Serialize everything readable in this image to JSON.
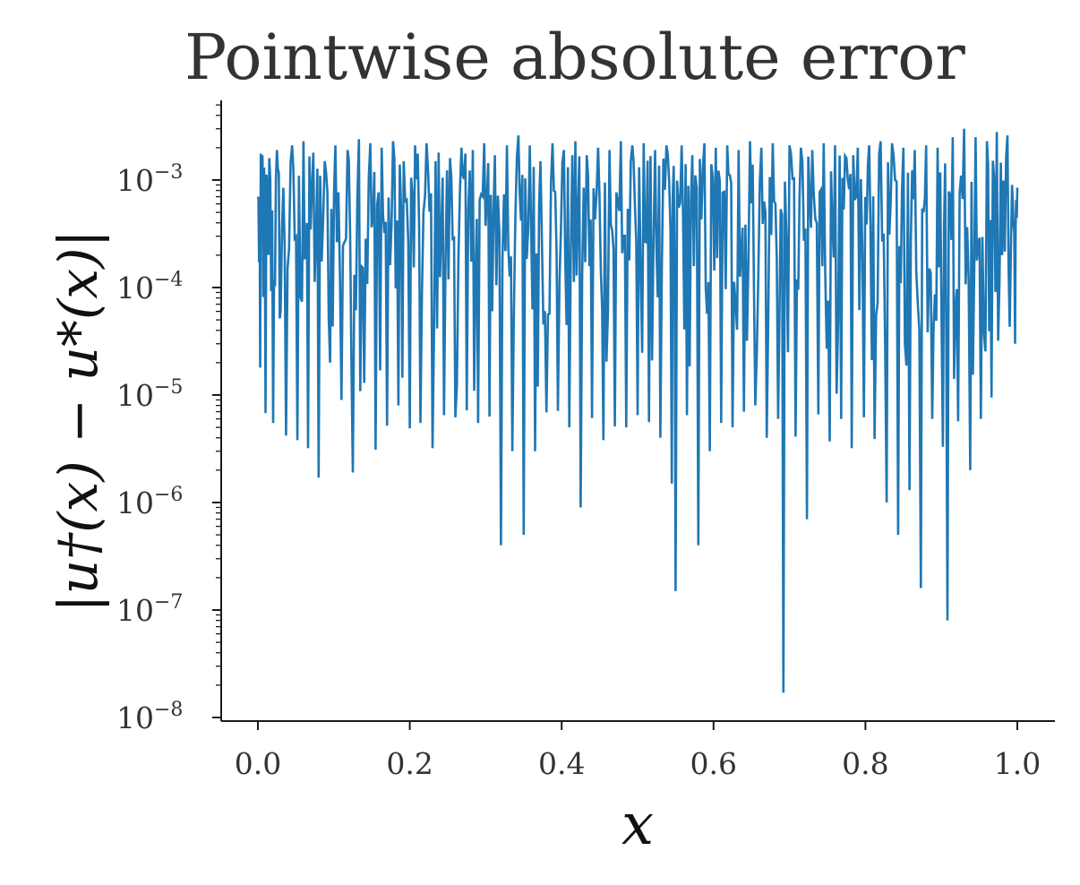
{
  "chart_data": {
    "type": "line",
    "title": "Pointwise absolute error",
    "xlabel": "x",
    "ylabel": "|u†(x) − u*(x)|",
    "xlim": [
      -0.05,
      1.05
    ],
    "ylim": [
      1e-08,
      0.005
    ],
    "yscale": "log",
    "grid": false,
    "x_ticks": [
      "0.0",
      "0.2",
      "0.4",
      "0.6",
      "0.8",
      "1.0"
    ],
    "y_ticks": [
      {
        "base": "10",
        "exp": "−3"
      },
      {
        "base": "10",
        "exp": "−4"
      },
      {
        "base": "10",
        "exp": "−5"
      },
      {
        "base": "10",
        "exp": "−6"
      },
      {
        "base": "10",
        "exp": "−7"
      },
      {
        "base": "10",
        "exp": "−8"
      }
    ],
    "series": [
      {
        "color": "#1f77b4",
        "x": [
          0.0,
          0.003,
          0.006,
          0.01,
          0.015,
          0.02,
          0.025,
          0.03,
          0.037,
          0.045,
          0.052,
          0.06,
          0.066,
          0.073,
          0.08,
          0.088,
          0.095,
          0.102,
          0.11,
          0.118,
          0.125,
          0.133,
          0.14,
          0.148,
          0.155,
          0.163,
          0.17,
          0.178,
          0.185,
          0.192,
          0.2,
          0.207,
          0.214,
          0.222,
          0.23,
          0.238,
          0.245,
          0.253,
          0.26,
          0.268,
          0.275,
          0.283,
          0.29,
          0.298,
          0.305,
          0.312,
          0.32,
          0.328,
          0.335,
          0.343,
          0.35,
          0.358,
          0.365,
          0.372,
          0.38,
          0.388,
          0.395,
          0.403,
          0.41,
          0.418,
          0.425,
          0.433,
          0.44,
          0.448,
          0.455,
          0.463,
          0.47,
          0.478,
          0.485,
          0.493,
          0.5,
          0.508,
          0.515,
          0.523,
          0.53,
          0.538,
          0.545,
          0.55,
          0.558,
          0.565,
          0.572,
          0.58,
          0.588,
          0.595,
          0.603,
          0.61,
          0.618,
          0.625,
          0.633,
          0.64,
          0.648,
          0.655,
          0.663,
          0.67,
          0.678,
          0.685,
          0.692,
          0.7,
          0.708,
          0.715,
          0.723,
          0.73,
          0.738,
          0.745,
          0.753,
          0.76,
          0.768,
          0.775,
          0.782,
          0.79,
          0.798,
          0.805,
          0.812,
          0.82,
          0.828,
          0.835,
          0.843,
          0.85,
          0.858,
          0.865,
          0.873,
          0.88,
          0.888,
          0.895,
          0.902,
          0.908,
          0.915,
          0.922,
          0.93,
          0.938,
          0.945,
          0.952,
          0.96,
          0.966,
          0.973,
          0.98,
          0.987,
          0.993,
          0.997,
          1.0
        ],
        "y": [
          0.0007,
          1.8e-05,
          0.0017,
          6.8e-06,
          0.0016,
          5.5e-06,
          0.0019,
          6e-05,
          4.2e-06,
          0.0021,
          3.8e-06,
          0.0023,
          3.2e-06,
          0.0018,
          1.7e-06,
          0.0015,
          2e-05,
          0.0021,
          9e-06,
          0.0019,
          1.9e-06,
          0.0024,
          1.3e-05,
          0.0022,
          3.1e-06,
          0.002,
          5.2e-06,
          0.0023,
          8e-06,
          0.0015,
          4.9e-06,
          0.0021,
          5.5e-06,
          0.0022,
          3.2e-06,
          0.0018,
          6.5e-06,
          0.0016,
          6.2e-06,
          0.002,
          7.2e-06,
          0.0019,
          5.5e-06,
          0.0022,
          6.3e-06,
          0.0017,
          4e-07,
          0.0021,
          3e-06,
          0.0026,
          5e-07,
          0.0021,
          3e-06,
          0.0015,
          6.9e-06,
          0.0022,
          7.1e-06,
          0.0019,
          5e-06,
          0.0023,
          9e-07,
          0.0017,
          6.1e-06,
          0.002,
          3.8e-06,
          0.0019,
          5.1e-06,
          0.0023,
          5e-06,
          0.0021,
          6.5e-06,
          0.0022,
          5.6e-06,
          0.0019,
          4e-06,
          0.0021,
          1.5e-06,
          1.5e-07,
          0.0021,
          6.5e-06,
          0.0017,
          4e-07,
          0.0022,
          3e-06,
          0.002,
          5.5e-06,
          0.0021,
          5e-06,
          0.0019,
          7e-06,
          0.0023,
          8e-06,
          0.002,
          4e-06,
          0.0022,
          6e-06,
          1.7e-08,
          0.0021,
          4.1e-06,
          0.002,
          7e-07,
          0.0019,
          6.6e-06,
          0.0022,
          3.7e-06,
          0.0021,
          6e-06,
          0.0016,
          3.2e-06,
          0.002,
          6.2e-06,
          0.0021,
          3.9e-06,
          0.0023,
          1e-06,
          0.0022,
          5e-07,
          0.002,
          1.3e-06,
          0.0019,
          1.6e-07,
          0.0021,
          6e-06,
          0.002,
          3.3e-06,
          8e-08,
          0.0025,
          5.7e-06,
          0.003,
          2e-06,
          0.0025,
          6e-06,
          0.0023,
          9.5e-06,
          0.0028,
          0.0002,
          0.0026,
          0.0009,
          3e-05,
          0.00085
        ]
      }
    ]
  }
}
